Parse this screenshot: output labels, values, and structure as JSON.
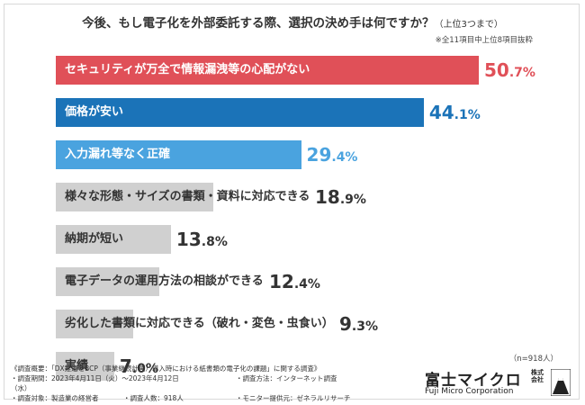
{
  "header": {
    "title": "今後、もし電子化を外部委託する際、選択の決め手は何ですか？",
    "title_sub": "（上位3つまで）",
    "note": "※全11項目中上位8項目抜粋"
  },
  "chart_data": {
    "type": "bar",
    "orientation": "horizontal",
    "unit": "%",
    "xlim": [
      0,
      60
    ],
    "grid": false,
    "categories": [
      "セキュリティが万全で情報漏洩等の心配がない",
      "価格が安い",
      "入力漏れ等なく正確",
      "様々な形態・サイズの書類・資料に対応できる",
      "納期が短い",
      "電子データの運用方法の相談ができる",
      "劣化した書類に対応できる（破れ・変色・虫食い）",
      "実績"
    ],
    "values": [
      50.7,
      44.1,
      29.4,
      18.9,
      13.8,
      12.4,
      9.3,
      7.0
    ],
    "colors": [
      "#e05058",
      "#1b73b8",
      "#4aa3df",
      "#d0d0d0",
      "#d0d0d0",
      "#d0d0d0",
      "#d0d0d0",
      "#d0d0d0"
    ],
    "value_colors": [
      "#e05058",
      "#1b73b8",
      "#4aa3df",
      "#333333",
      "#333333",
      "#333333",
      "#333333",
      "#333333"
    ],
    "label_colors": [
      "#ffffff",
      "#ffffff",
      "#ffffff",
      "#333333",
      "#333333",
      "#333333",
      "#333333",
      "#333333"
    ]
  },
  "sample": {
    "n_label": "（n=918人）"
  },
  "footer": {
    "line1": "《調査概要：「DX推進とBCP（事業継続計画）導入時における紙書類の電子化の課題」に関する調査》",
    "period": "・調査期間：2023年4月11日（火）～2023年4月12日（水）",
    "method": "・調査方法：インターネット調査",
    "target": "・調査対象：製造業の経営者",
    "count": "・調査人数：918人",
    "provider": "・モニター提供元：ゼネラルリサーチ"
  },
  "logo": {
    "name_jp": "富士マイクロ",
    "kabushiki": "株式",
    "kaisha": "会社",
    "name_en": "Fuji Micro Corporation"
  }
}
